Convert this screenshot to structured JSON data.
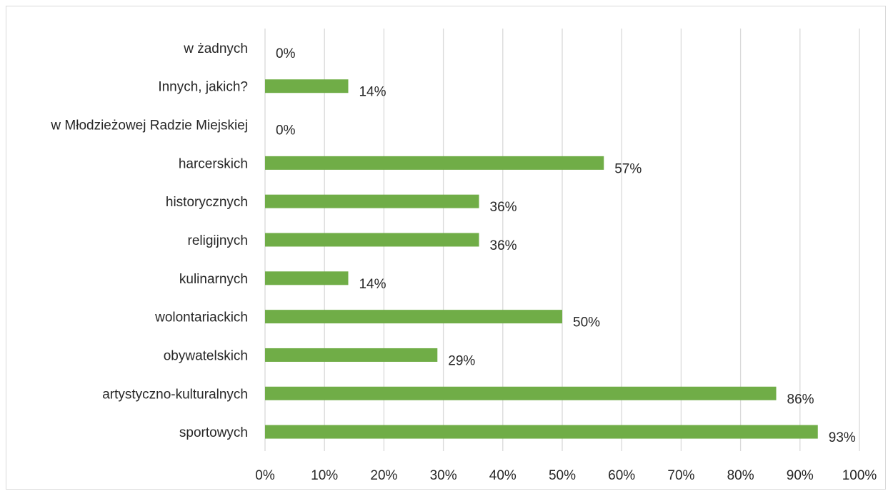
{
  "chart_data": {
    "type": "bar",
    "orientation": "horizontal",
    "categories": [
      "w żadnych",
      "Innych, jakich?",
      "w Młodzieżowej Radzie Miejskiej",
      "harcerskich",
      "historycznych",
      "religijnych",
      "kulinarnych",
      "wolontariackich",
      "obywatelskich",
      "artystyczno-kulturalnych",
      "sportowych"
    ],
    "values": [
      0,
      14,
      0,
      57,
      36,
      36,
      14,
      50,
      29,
      86,
      93
    ],
    "data_labels": [
      "0%",
      "14%",
      "0%",
      "57%",
      "36%",
      "36%",
      "14%",
      "50%",
      "29%",
      "86%",
      "93%"
    ],
    "xlim": [
      0,
      100
    ],
    "x_ticks": [
      "0%",
      "10%",
      "20%",
      "30%",
      "40%",
      "50%",
      "60%",
      "70%",
      "80%",
      "90%",
      "100%"
    ],
    "title": "",
    "xlabel": "",
    "ylabel": "",
    "grid": "vertical",
    "legend": "none",
    "bar_color": "#70ad47"
  }
}
